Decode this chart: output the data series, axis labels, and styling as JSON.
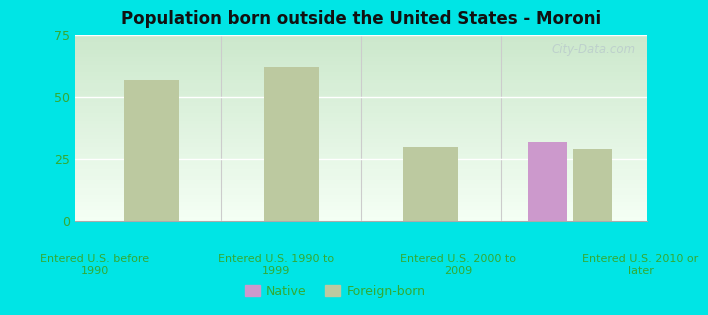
{
  "title": "Population born outside the United States - Moroni",
  "categories": [
    "Entered U.S. before\n1990",
    "Entered U.S. 1990 to\n1999",
    "Entered U.S. 2000 to\n2009",
    "Entered U.S. 2010 or\nlater"
  ],
  "native_values": [
    0,
    0,
    0,
    32
  ],
  "foreign_born_values": [
    57,
    62,
    30,
    29
  ],
  "native_color": "#cc99cc",
  "foreign_born_color": "#bcc9a0",
  "ylim": [
    0,
    75
  ],
  "yticks": [
    0,
    25,
    50,
    75
  ],
  "bg_outer": "#00e5e5",
  "bg_plot_top": "#cce8cc",
  "bg_plot_bottom": "#f5fff5",
  "title_color": "#111111",
  "axis_label_color": "#33aa33",
  "tick_color": "#33aa33",
  "bar_width": 0.28,
  "legend_native": "Native",
  "legend_foreign": "Foreign-born",
  "watermark": "City-Data.com"
}
